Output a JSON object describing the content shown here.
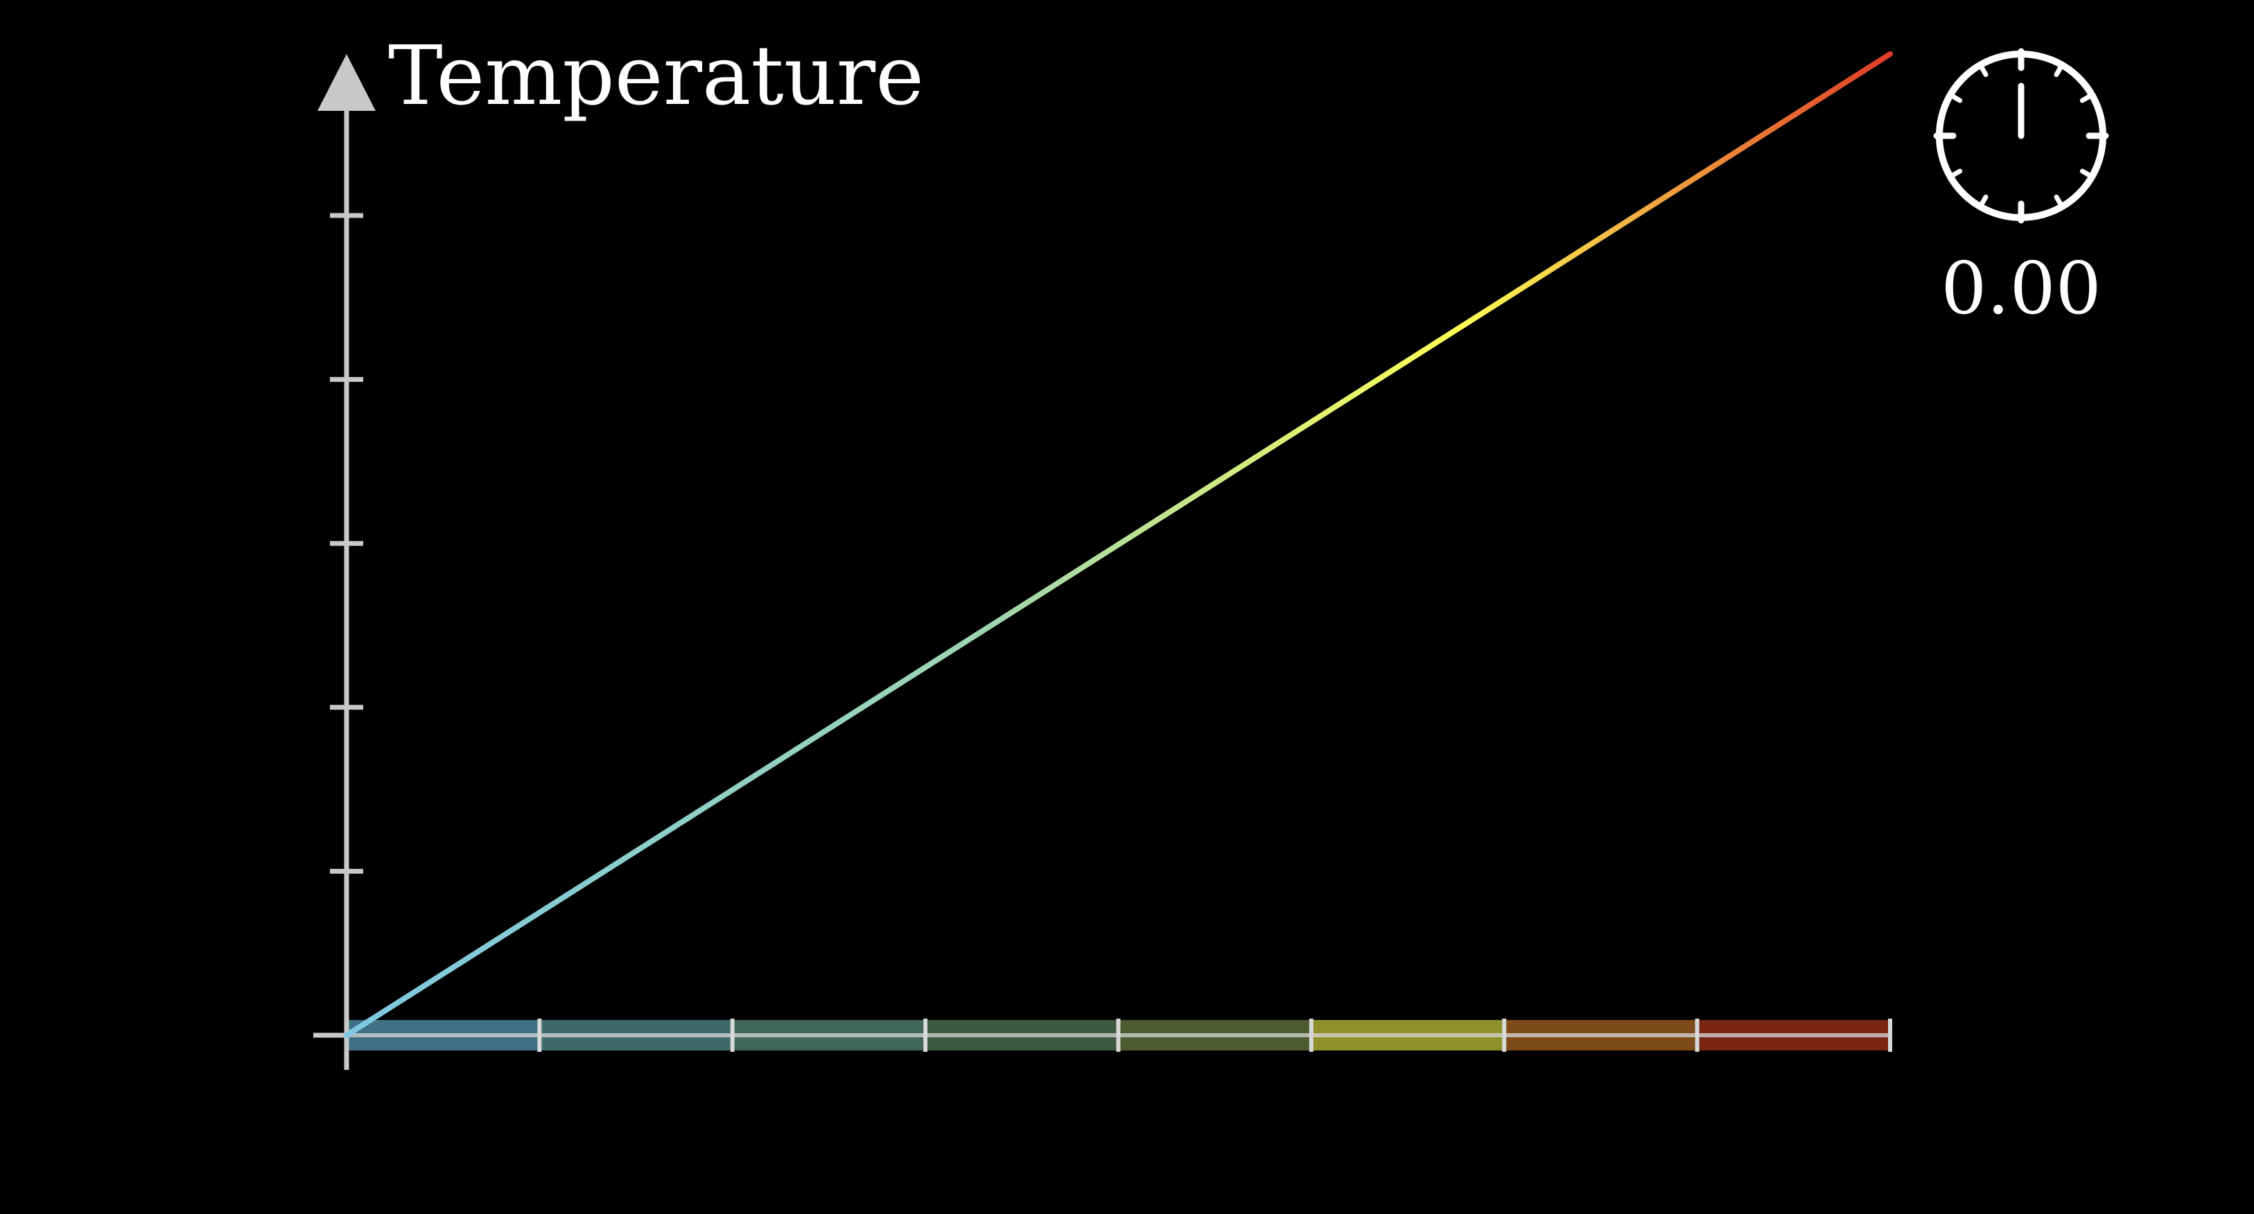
{
  "chart_data": {
    "type": "line",
    "ylabel": "Temperature",
    "xlabel": "",
    "title": "",
    "x_range": [
      0,
      8
    ],
    "y_range": [
      0,
      6
    ],
    "x_ticks": [
      0,
      1,
      2,
      3,
      4,
      5,
      6,
      7,
      8
    ],
    "y_ticks": [
      0,
      1,
      2,
      3,
      4,
      5
    ],
    "series": [
      {
        "x": [
          0,
          8
        ],
        "y": [
          0,
          6
        ],
        "color_start": "#7ec8e3",
        "color_mid": "#ffff55",
        "color_end": "#e03c28"
      }
    ],
    "rod": {
      "segments": 8,
      "colors": [
        "#3f7085",
        "#3f6a6c",
        "#3f6656",
        "#3e5a3e",
        "#4e5a30",
        "#8f8f2c",
        "#7d4a18",
        "#7a2414"
      ],
      "edge_color": "#d8d8d8"
    },
    "axis_color": "#c8c8c8"
  },
  "timer": {
    "value": "0.00",
    "icon": "stopwatch-icon"
  }
}
